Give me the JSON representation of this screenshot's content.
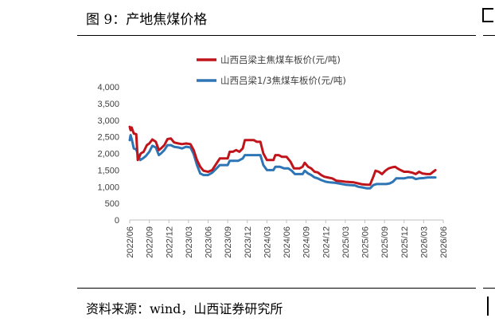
{
  "figure": {
    "title": "图 9：产地焦煤价格",
    "source": "资料来源：wind，山西证券研究所"
  },
  "chart_data": {
    "type": "line",
    "title": "",
    "xlabel": "",
    "ylabel": "",
    "ylim": [
      0,
      4000
    ],
    "yticks": [
      "4,000",
      "3,500",
      "3,000",
      "2,500",
      "2,000",
      "1,500",
      "1,000",
      "500",
      "0"
    ],
    "xticks": [
      "2022/06",
      "2022/09",
      "2022/12",
      "2023/03",
      "2023/06",
      "2023/09",
      "2023/12",
      "2024/03",
      "2024/06",
      "2024/09",
      "2024/12",
      "2025/03",
      "2025/06",
      "2025/09",
      "2025/12",
      "2026/03",
      "2026/06"
    ],
    "grid": false,
    "legend": "top-center",
    "series": [
      {
        "name": "山西吕梁主焦煤车板价(元/吨)",
        "color": "#c0141b",
        "points": [
          [
            "2022-06-01",
            2800
          ],
          [
            "2022-06-05",
            2700
          ],
          [
            "2022-06-10",
            2780
          ],
          [
            "2022-06-20",
            2600
          ],
          [
            "2022-07-01",
            2580
          ],
          [
            "2022-07-08",
            1800
          ],
          [
            "2022-07-15",
            1900
          ],
          [
            "2022-07-22",
            2000
          ],
          [
            "2022-08-05",
            2050
          ],
          [
            "2022-08-20",
            2250
          ],
          [
            "2022-09-01",
            2300
          ],
          [
            "2022-09-15",
            2420
          ],
          [
            "2022-10-01",
            2350
          ],
          [
            "2022-10-15",
            2100
          ],
          [
            "2022-10-25",
            2150
          ],
          [
            "2022-11-10",
            2250
          ],
          [
            "2022-11-25",
            2430
          ],
          [
            "2022-12-10",
            2450
          ],
          [
            "2022-12-25",
            2330
          ],
          [
            "2023-01-15",
            2300
          ],
          [
            "2023-02-01",
            2280
          ],
          [
            "2023-02-20",
            2300
          ],
          [
            "2023-03-10",
            2280
          ],
          [
            "2023-03-25",
            2100
          ],
          [
            "2023-04-10",
            1800
          ],
          [
            "2023-04-25",
            1600
          ],
          [
            "2023-05-10",
            1480
          ],
          [
            "2023-06-01",
            1450
          ],
          [
            "2023-06-20",
            1500
          ],
          [
            "2023-07-10",
            1700
          ],
          [
            "2023-07-25",
            1850
          ],
          [
            "2023-08-15",
            1850
          ],
          [
            "2023-09-01",
            1850
          ],
          [
            "2023-09-10",
            2050
          ],
          [
            "2023-09-25",
            2050
          ],
          [
            "2023-10-10",
            2100
          ],
          [
            "2023-10-25",
            2050
          ],
          [
            "2023-11-10",
            2150
          ],
          [
            "2023-11-20",
            2400
          ],
          [
            "2023-12-10",
            2400
          ],
          [
            "2024-01-01",
            2400
          ],
          [
            "2024-01-15",
            2350
          ],
          [
            "2024-02-01",
            2350
          ],
          [
            "2024-02-15",
            2000
          ],
          [
            "2024-03-01",
            1800
          ],
          [
            "2024-03-20",
            1800
          ],
          [
            "2024-04-01",
            1800
          ],
          [
            "2024-04-10",
            1950
          ],
          [
            "2024-04-25",
            1950
          ],
          [
            "2024-05-10",
            1900
          ],
          [
            "2024-06-01",
            1900
          ],
          [
            "2024-06-20",
            1750
          ],
          [
            "2024-07-05",
            1550
          ],
          [
            "2024-08-01",
            1550
          ],
          [
            "2024-08-15",
            1600
          ],
          [
            "2024-08-25",
            1720
          ],
          [
            "2024-09-10",
            1600
          ],
          [
            "2024-09-25",
            1550
          ],
          [
            "2024-10-10",
            1450
          ],
          [
            "2024-10-25",
            1430
          ],
          [
            "2024-11-10",
            1350
          ],
          [
            "2024-11-25",
            1300
          ],
          [
            "2024-12-10",
            1280
          ],
          [
            "2025-01-01",
            1250
          ],
          [
            "2025-01-20",
            1180
          ],
          [
            "2025-02-10",
            1170
          ],
          [
            "2025-03-01",
            1150
          ],
          [
            "2025-03-20",
            1140
          ],
          [
            "2025-04-10",
            1130
          ],
          [
            "2025-05-01",
            1100
          ],
          [
            "2025-05-20",
            1070
          ],
          [
            "2025-06-10",
            1060
          ],
          [
            "2025-06-25",
            1060
          ],
          [
            "2025-07-10",
            1300
          ],
          [
            "2025-07-20",
            1480
          ],
          [
            "2025-08-05",
            1450
          ],
          [
            "2025-08-20",
            1380
          ],
          [
            "2025-09-05",
            1480
          ],
          [
            "2025-09-20",
            1550
          ],
          [
            "2025-10-05",
            1580
          ],
          [
            "2025-10-20",
            1600
          ],
          [
            "2025-11-01",
            1550
          ],
          [
            "2025-11-15",
            1500
          ],
          [
            "2025-12-01",
            1450
          ],
          [
            "2025-12-20",
            1450
          ],
          [
            "2026-01-10",
            1420
          ],
          [
            "2026-01-25",
            1380
          ],
          [
            "2026-02-10",
            1450
          ],
          [
            "2026-02-25",
            1400
          ],
          [
            "2026-03-15",
            1380
          ],
          [
            "2026-04-01",
            1380
          ],
          [
            "2026-04-15",
            1450
          ],
          [
            "2026-04-25",
            1500
          ]
        ]
      },
      {
        "name": "山西吕梁1/3焦煤车板价(元/吨)",
        "color": "#2e75b6",
        "points": [
          [
            "2022-06-01",
            2400
          ],
          [
            "2022-06-05",
            2550
          ],
          [
            "2022-06-12",
            2380
          ],
          [
            "2022-06-20",
            2150
          ],
          [
            "2022-07-01",
            2120
          ],
          [
            "2022-07-10",
            1950
          ],
          [
            "2022-07-20",
            1800
          ],
          [
            "2022-08-01",
            1850
          ],
          [
            "2022-08-15",
            1920
          ],
          [
            "2022-09-01",
            2050
          ],
          [
            "2022-09-15",
            2230
          ],
          [
            "2022-10-01",
            2180
          ],
          [
            "2022-10-15",
            1950
          ],
          [
            "2022-10-25",
            2000
          ],
          [
            "2022-11-10",
            2100
          ],
          [
            "2022-11-25",
            2250
          ],
          [
            "2022-12-10",
            2250
          ],
          [
            "2022-12-25",
            2200
          ],
          [
            "2023-01-15",
            2180
          ],
          [
            "2023-02-01",
            2150
          ],
          [
            "2023-02-20",
            2200
          ],
          [
            "2023-03-10",
            2180
          ],
          [
            "2023-03-25",
            1980
          ],
          [
            "2023-04-10",
            1650
          ],
          [
            "2023-04-25",
            1400
          ],
          [
            "2023-05-10",
            1350
          ],
          [
            "2023-06-01",
            1350
          ],
          [
            "2023-06-20",
            1420
          ],
          [
            "2023-07-10",
            1550
          ],
          [
            "2023-07-25",
            1650
          ],
          [
            "2023-08-15",
            1650
          ],
          [
            "2023-09-01",
            1650
          ],
          [
            "2023-09-10",
            1780
          ],
          [
            "2023-10-01",
            1780
          ],
          [
            "2023-10-20",
            1780
          ],
          [
            "2023-11-10",
            1850
          ],
          [
            "2023-11-20",
            1950
          ],
          [
            "2023-12-10",
            1950
          ],
          [
            "2024-01-10",
            1950
          ],
          [
            "2024-02-01",
            1950
          ],
          [
            "2024-02-15",
            1650
          ],
          [
            "2024-03-01",
            1500
          ],
          [
            "2024-03-20",
            1500
          ],
          [
            "2024-04-01",
            1500
          ],
          [
            "2024-04-10",
            1600
          ],
          [
            "2024-05-01",
            1600
          ],
          [
            "2024-05-20",
            1550
          ],
          [
            "2024-06-10",
            1550
          ],
          [
            "2024-06-25",
            1480
          ],
          [
            "2024-07-10",
            1380
          ],
          [
            "2024-08-01",
            1380
          ],
          [
            "2024-08-15",
            1380
          ],
          [
            "2024-08-25",
            1480
          ],
          [
            "2024-09-10",
            1400
          ],
          [
            "2024-09-25",
            1350
          ],
          [
            "2024-10-10",
            1280
          ],
          [
            "2024-10-25",
            1250
          ],
          [
            "2024-11-10",
            1200
          ],
          [
            "2024-12-01",
            1150
          ],
          [
            "2024-12-20",
            1130
          ],
          [
            "2025-01-10",
            1120
          ],
          [
            "2025-02-01",
            1100
          ],
          [
            "2025-03-01",
            1060
          ],
          [
            "2025-03-25",
            1050
          ],
          [
            "2025-04-15",
            1040
          ],
          [
            "2025-05-01",
            1000
          ],
          [
            "2025-05-20",
            980
          ],
          [
            "2025-06-10",
            950
          ],
          [
            "2025-06-25",
            950
          ],
          [
            "2025-07-10",
            1050
          ],
          [
            "2025-07-25",
            1080
          ],
          [
            "2025-08-20",
            1080
          ],
          [
            "2025-09-10",
            1080
          ],
          [
            "2025-09-25",
            1100
          ],
          [
            "2025-10-10",
            1150
          ],
          [
            "2025-10-25",
            1250
          ],
          [
            "2025-11-15",
            1250
          ],
          [
            "2025-12-01",
            1250
          ],
          [
            "2025-12-20",
            1280
          ],
          [
            "2026-01-10",
            1280
          ],
          [
            "2026-01-25",
            1230
          ],
          [
            "2026-02-10",
            1250
          ],
          [
            "2026-03-01",
            1260
          ],
          [
            "2026-03-20",
            1280
          ],
          [
            "2026-04-10",
            1280
          ],
          [
            "2026-04-25",
            1280
          ]
        ]
      }
    ]
  }
}
